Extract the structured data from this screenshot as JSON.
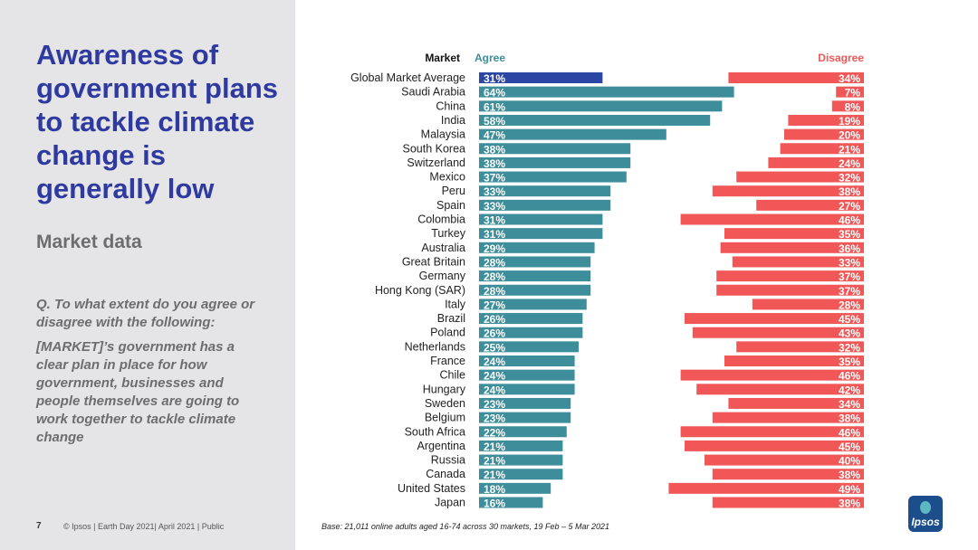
{
  "sidebar": {
    "title": "Awareness of government plans to tackle climate change is generally low",
    "subtitle": "Market data",
    "question": "Q. To what extent do you agree or disagree with the following:",
    "statement": "[MARKET]’s government has a clear plan in place for how government, businesses and people themselves are going to work together to tackle climate change"
  },
  "footer": {
    "page": "7",
    "text": "© Ipsos | Earth Day 2021| April 2021 | Public",
    "base": "Base: 21,011 online adults aged 16-74 across 30 markets,  19 Feb – 5 Mar 2021"
  },
  "logo": {
    "text": "Ipsos"
  },
  "colors": {
    "title": "#2e3a9f",
    "agree": "#3d8e9a",
    "agree_highlight": "#2c47a3",
    "disagree": "#f25757",
    "agree_header": "#3d8e9a",
    "disagree_header": "#f25757"
  },
  "chart_data": {
    "type": "bar",
    "headers": {
      "market": "Market",
      "agree": "Agree",
      "disagree": "Disagree"
    },
    "categories": [
      "Global Market Average",
      "Saudi Arabia",
      "China",
      "India",
      "Malaysia",
      "South Korea",
      "Switzerland",
      "Mexico",
      "Peru",
      "Spain",
      "Colombia",
      "Turkey",
      "Australia",
      "Great Britain",
      "Germany",
      "Hong Kong (SAR)",
      "Italy",
      "Brazil",
      "Poland",
      "Netherlands",
      "France",
      "Chile",
      "Hungary",
      "Sweden",
      "Belgium",
      "South Africa",
      "Argentina",
      "Russia",
      "Canada",
      "United States",
      "Japan"
    ],
    "series": [
      {
        "name": "Agree",
        "values": [
          31,
          64,
          61,
          58,
          47,
          38,
          38,
          37,
          33,
          33,
          31,
          31,
          29,
          28,
          28,
          28,
          27,
          26,
          26,
          25,
          24,
          24,
          24,
          23,
          23,
          22,
          21,
          21,
          21,
          18,
          16
        ]
      },
      {
        "name": "Disagree",
        "values": [
          34,
          7,
          8,
          19,
          20,
          21,
          24,
          32,
          38,
          27,
          46,
          35,
          36,
          33,
          37,
          37,
          28,
          45,
          43,
          32,
          35,
          46,
          42,
          34,
          38,
          46,
          45,
          40,
          38,
          49,
          38
        ]
      }
    ],
    "value_suffix": "%",
    "xlim": [
      0,
      100
    ]
  }
}
